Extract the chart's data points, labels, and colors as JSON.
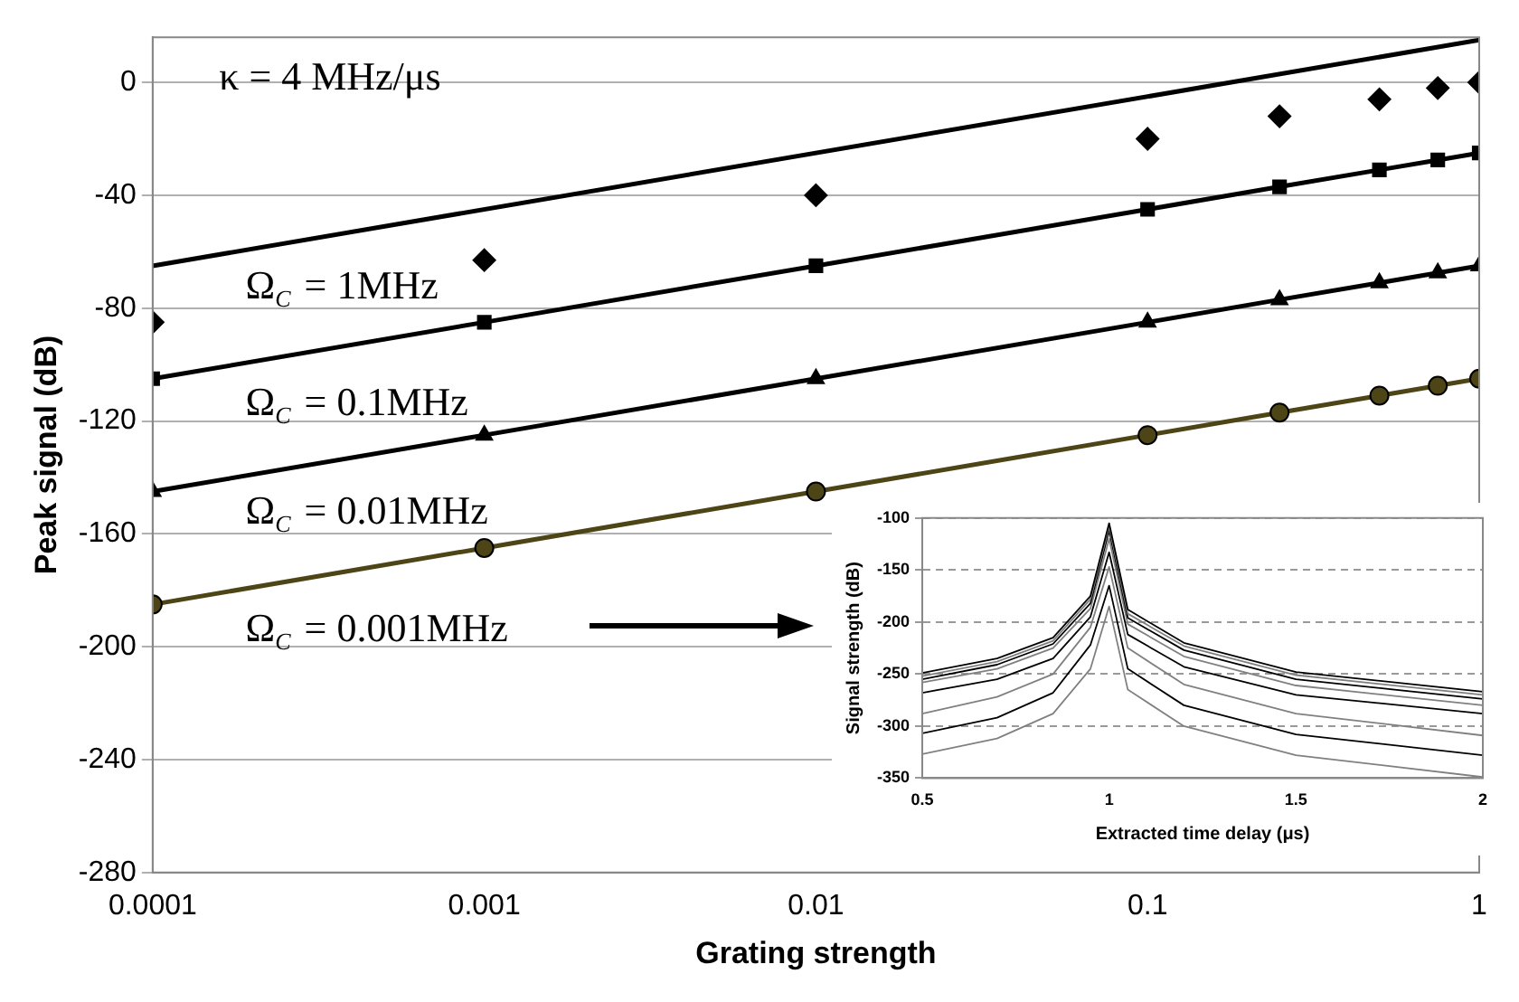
{
  "chart_data": [
    {
      "type": "line",
      "xlabel": "Grating strength",
      "ylabel": "Peak signal (dB)",
      "log": "x",
      "grid": "y",
      "xlim": [
        0.0001,
        1
      ],
      "ylim": [
        -280,
        16
      ],
      "xticks": [
        0.0001,
        0.001,
        0.01,
        0.1,
        1
      ],
      "yticks": [
        -280,
        -240,
        -200,
        -160,
        -120,
        -80,
        -40,
        0
      ],
      "x": [
        0.0001,
        0.001,
        0.01,
        0.1,
        0.25,
        0.5,
        0.75,
        1
      ],
      "annotations": [
        "κ = 4 MHz/μs",
        "Ω$_{C}$ = 1MHz",
        "Ω$_{C}$ = 0.1MHz",
        "Ω$_{C}$ = 0.01MHz",
        "Ω$_{C}$ = 0.001MHz"
      ],
      "series": [
        {
          "type": "line",
          "marker": "none",
          "color": "#000000",
          "x": [
            0.0001,
            1
          ],
          "values": [
            -65,
            15
          ]
        },
        {
          "type": "scatter",
          "marker": "diamond",
          "color": "#000000",
          "values": [
            -85,
            -63,
            -40,
            -20,
            -12,
            -6,
            -2,
            0
          ]
        },
        {
          "type": "line",
          "marker": "square",
          "color": "#000000",
          "values": [
            -105,
            -85,
            -65,
            -45,
            -37,
            -31,
            -27.5,
            -25
          ]
        },
        {
          "type": "line",
          "marker": "triangle",
          "color": "#000000",
          "values": [
            -145,
            -125,
            -105,
            -85,
            -77,
            -71,
            -67.5,
            -65
          ]
        },
        {
          "type": "line",
          "marker": "circle",
          "color": "#4d4516",
          "values": [
            -185,
            -165,
            -145,
            -125,
            -117,
            -111,
            -107.5,
            -105
          ]
        }
      ]
    },
    {
      "type": "line",
      "xlabel": "Extracted time delay (μs)",
      "ylabel": "Signal strength (dB)",
      "grid": "y",
      "marker": "none",
      "xlim": [
        0.5,
        2
      ],
      "ylim": [
        -350,
        -100
      ],
      "xticks": [
        0.5,
        1,
        1.5,
        2
      ],
      "yticks": [
        -350,
        -300,
        -250,
        -200,
        -150,
        -100
      ],
      "x": [
        0.5,
        0.7,
        0.85,
        0.95,
        1.0,
        1.05,
        1.2,
        1.5,
        2.0
      ],
      "series": [
        {
          "color": "#000000",
          "values": [
            -249,
            -235,
            -215,
            -175,
            -105,
            -188,
            -220,
            -248,
            -267
          ]
        },
        {
          "color": "#808080",
          "values": [
            -252,
            -238,
            -218,
            -178,
            -108,
            -192,
            -223,
            -251,
            -270
          ]
        },
        {
          "color": "#000000",
          "values": [
            -255,
            -241,
            -221,
            -182,
            -112,
            -196,
            -227,
            -255,
            -274
          ]
        },
        {
          "color": "#808080",
          "values": [
            -258,
            -245,
            -225,
            -187,
            -120,
            -202,
            -233,
            -261,
            -280
          ]
        },
        {
          "color": "#000000",
          "values": [
            -268,
            -255,
            -235,
            -195,
            -133,
            -212,
            -243,
            -270,
            -288
          ]
        },
        {
          "color": "#808080",
          "values": [
            -288,
            -272,
            -250,
            -205,
            -147,
            -225,
            -260,
            -288,
            -309
          ]
        },
        {
          "color": "#000000",
          "values": [
            -307,
            -292,
            -268,
            -222,
            -165,
            -245,
            -280,
            -308,
            -328
          ]
        },
        {
          "color": "#808080",
          "values": [
            -327,
            -312,
            -288,
            -245,
            -185,
            -265,
            -300,
            -328,
            -349
          ]
        }
      ]
    }
  ]
}
